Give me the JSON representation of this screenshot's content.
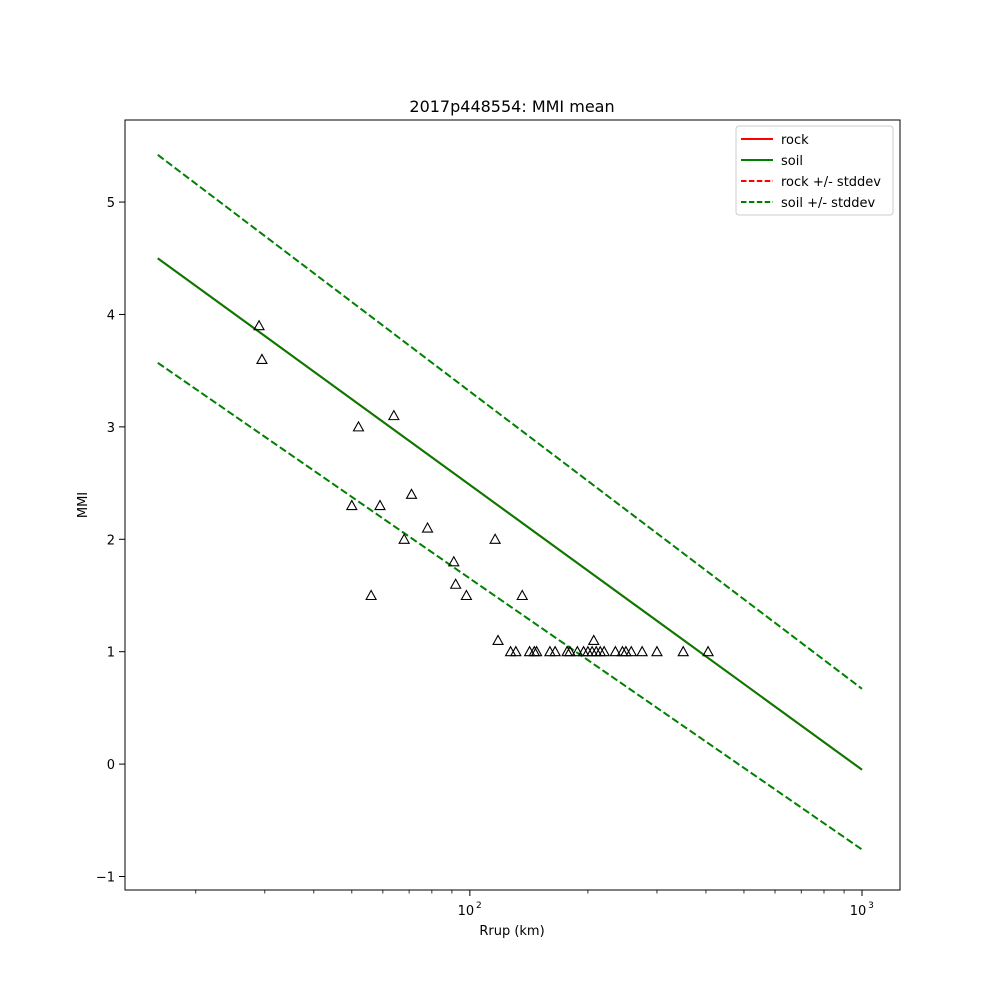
{
  "chart_data": {
    "type": "line",
    "title": "2017p448554: MMI mean",
    "xlabel": "Rrup (km)",
    "ylabel": "MMI",
    "xscale": "log",
    "xlim": [
      13.2,
      1250
    ],
    "ylim": [
      -1.12,
      5.73
    ],
    "xticks": [
      {
        "value": 100,
        "base": "10",
        "exp": "2"
      },
      {
        "value": 1000,
        "base": "10",
        "exp": "3"
      }
    ],
    "yticks": [
      {
        "value": -1,
        "label": "−1"
      },
      {
        "value": 0,
        "label": "0"
      },
      {
        "value": 1,
        "label": "1"
      },
      {
        "value": 2,
        "label": "2"
      },
      {
        "value": 3,
        "label": "3"
      },
      {
        "value": 4,
        "label": "4"
      },
      {
        "value": 5,
        "label": "5"
      }
    ],
    "grid": false,
    "legend_position": "top-right",
    "series": [
      {
        "name": "rock",
        "style": "solid",
        "color": "#ff0000",
        "x": [
          16.0,
          1000
        ],
        "y": [
          4.5,
          -0.05
        ]
      },
      {
        "name": "soil",
        "style": "solid",
        "color": "#008000",
        "x": [
          16.0,
          1000
        ],
        "y": [
          4.5,
          -0.05
        ]
      },
      {
        "name": "rock +/- stddev",
        "style": "dashed",
        "color": "#ff0000",
        "x": [],
        "y": []
      },
      {
        "name": "soil +/- stddev",
        "style": "dashed",
        "color": "#008000",
        "x": [
          16.0,
          1000
        ],
        "y": [
          5.42,
          0.67
        ]
      }
    ],
    "stddev_lower": {
      "x": [
        16.0,
        1000
      ],
      "y": [
        3.57,
        -0.76
      ]
    },
    "observations": {
      "marker": "triangle",
      "points": [
        {
          "x": 29.0,
          "y": 3.9
        },
        {
          "x": 29.5,
          "y": 3.6
        },
        {
          "x": 50.0,
          "y": 2.3
        },
        {
          "x": 52.0,
          "y": 3.0
        },
        {
          "x": 56.0,
          "y": 1.5
        },
        {
          "x": 59.0,
          "y": 2.3
        },
        {
          "x": 64.0,
          "y": 3.1
        },
        {
          "x": 68.0,
          "y": 2.0
        },
        {
          "x": 71.0,
          "y": 2.4
        },
        {
          "x": 78.0,
          "y": 2.1
        },
        {
          "x": 91.0,
          "y": 1.8
        },
        {
          "x": 92.0,
          "y": 1.6
        },
        {
          "x": 98.0,
          "y": 1.5
        },
        {
          "x": 116.0,
          "y": 2.0
        },
        {
          "x": 118.0,
          "y": 1.1
        },
        {
          "x": 127.0,
          "y": 1.0
        },
        {
          "x": 131.0,
          "y": 1.0
        },
        {
          "x": 136.0,
          "y": 1.5
        },
        {
          "x": 142.0,
          "y": 1.0
        },
        {
          "x": 146.0,
          "y": 1.0
        },
        {
          "x": 148.0,
          "y": 1.0
        },
        {
          "x": 160.0,
          "y": 1.0
        },
        {
          "x": 165.0,
          "y": 1.0
        },
        {
          "x": 177.0,
          "y": 1.0
        },
        {
          "x": 180.0,
          "y": 1.0
        },
        {
          "x": 188.0,
          "y": 1.0
        },
        {
          "x": 195.0,
          "y": 1.0
        },
        {
          "x": 200.0,
          "y": 1.0
        },
        {
          "x": 205.0,
          "y": 1.0
        },
        {
          "x": 207.0,
          "y": 1.1
        },
        {
          "x": 210.0,
          "y": 1.0
        },
        {
          "x": 215.0,
          "y": 1.0
        },
        {
          "x": 220.0,
          "y": 1.0
        },
        {
          "x": 235.0,
          "y": 1.0
        },
        {
          "x": 245.0,
          "y": 1.0
        },
        {
          "x": 250.0,
          "y": 1.0
        },
        {
          "x": 258.0,
          "y": 1.0
        },
        {
          "x": 275.0,
          "y": 1.0
        },
        {
          "x": 300.0,
          "y": 1.0
        },
        {
          "x": 350.0,
          "y": 1.0
        },
        {
          "x": 405.0,
          "y": 1.0
        }
      ]
    }
  }
}
